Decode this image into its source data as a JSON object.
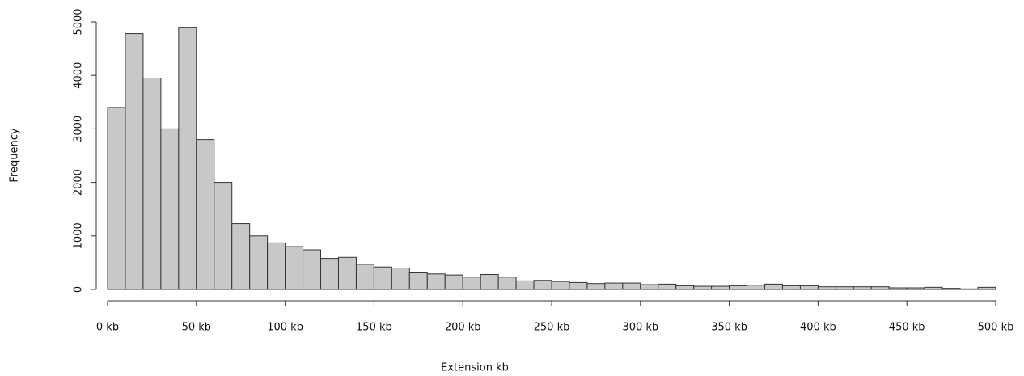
{
  "chart_data": {
    "type": "histogram",
    "xlabel": "Extension kb",
    "ylabel": "Frequency",
    "bins": [
      0,
      10,
      20,
      30,
      40,
      50,
      60,
      70,
      80,
      90,
      100,
      110,
      120,
      130,
      140,
      150,
      160,
      170,
      180,
      190,
      200,
      210,
      220,
      230,
      240,
      250,
      260,
      270,
      280,
      290,
      300,
      310,
      320,
      330,
      340,
      350,
      360,
      370,
      380,
      390,
      400,
      410,
      420,
      430,
      440,
      450,
      460,
      470,
      480,
      490,
      500
    ],
    "values": [
      3400,
      4780,
      3950,
      3000,
      4890,
      2800,
      2000,
      1230,
      1000,
      870,
      800,
      740,
      580,
      600,
      470,
      420,
      400,
      310,
      290,
      270,
      230,
      280,
      230,
      160,
      170,
      150,
      130,
      110,
      120,
      120,
      90,
      100,
      70,
      60,
      60,
      70,
      80,
      100,
      70,
      70,
      50,
      50,
      50,
      50,
      30,
      30,
      40,
      20,
      10,
      40
    ],
    "color": "#c8c8c8",
    "xlim": [
      0,
      500
    ],
    "ylim": [
      0,
      5000
    ],
    "xticks": [
      {
        "value": 0,
        "label": "0 kb"
      },
      {
        "value": 50,
        "label": "50 kb"
      },
      {
        "value": 100,
        "label": "100 kb"
      },
      {
        "value": 150,
        "label": "150 kb"
      },
      {
        "value": 200,
        "label": "200 kb"
      },
      {
        "value": 250,
        "label": "250 kb"
      },
      {
        "value": 300,
        "label": "300 kb"
      },
      {
        "value": 350,
        "label": "350 kb"
      },
      {
        "value": 400,
        "label": "400 kb"
      },
      {
        "value": 450,
        "label": "450 kb"
      },
      {
        "value": 500,
        "label": "500 kb"
      }
    ],
    "yticks": [
      0,
      1000,
      2000,
      3000,
      4000,
      5000
    ]
  }
}
